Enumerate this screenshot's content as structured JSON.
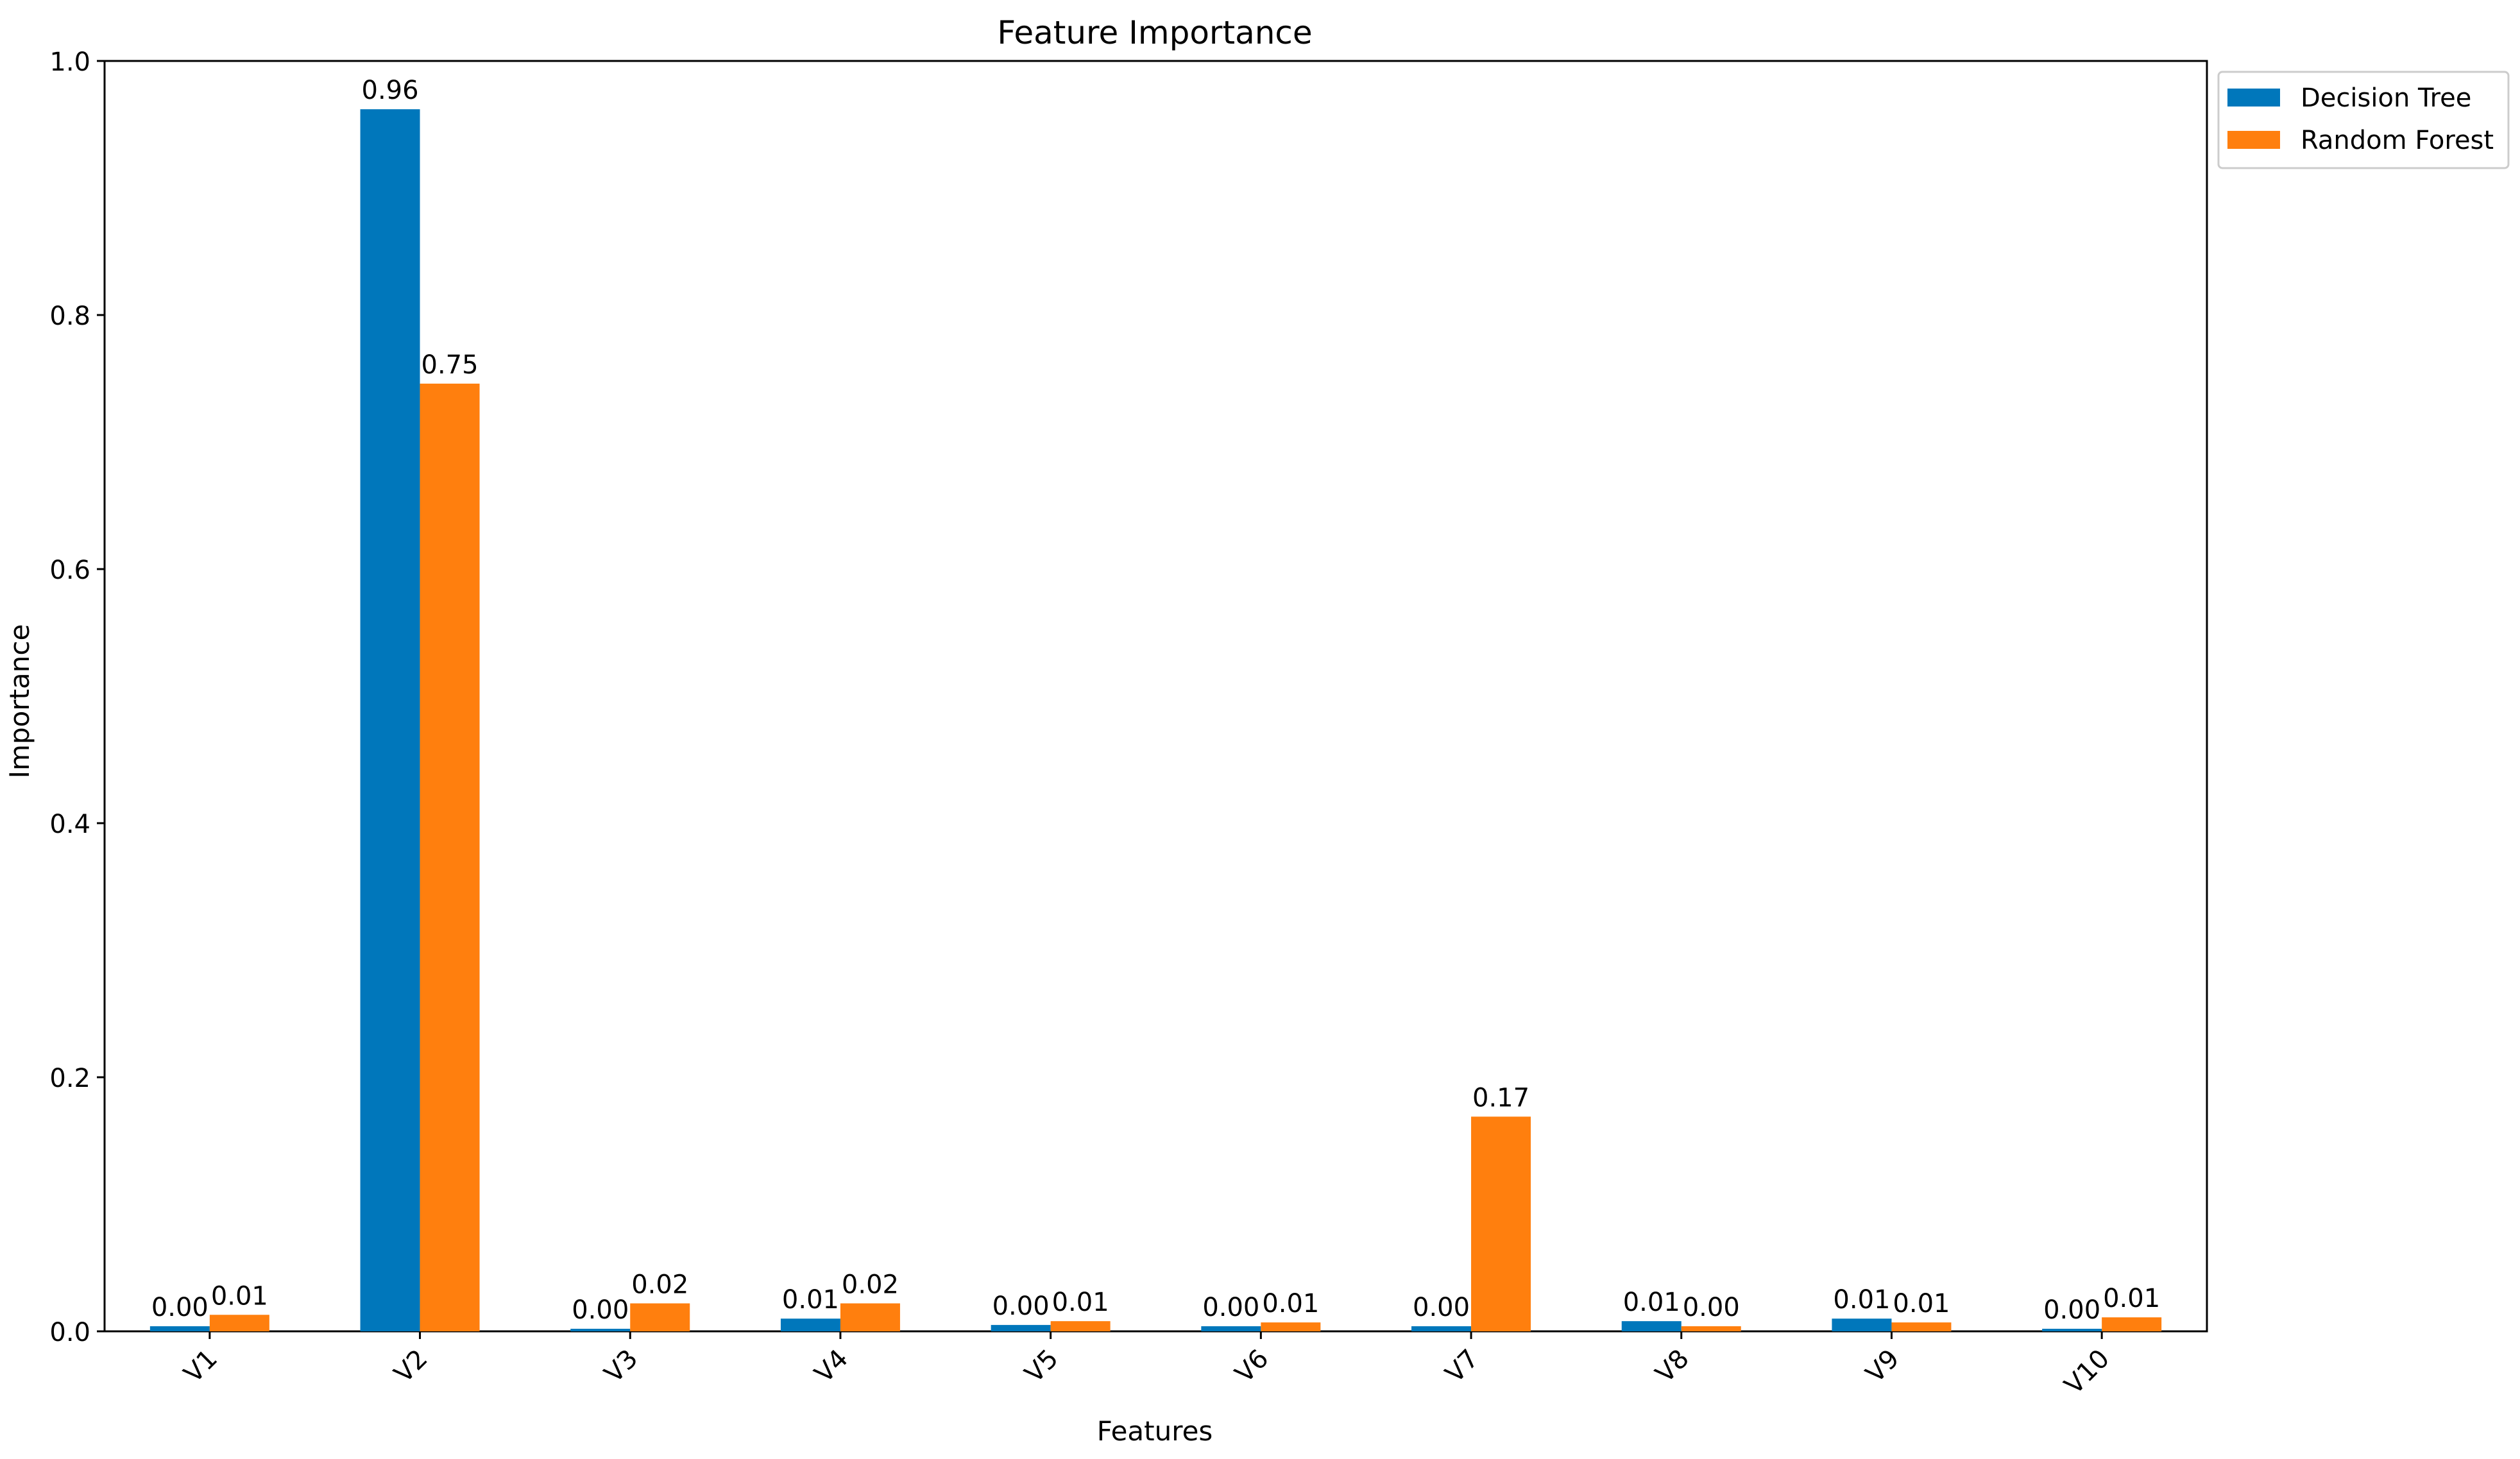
{
  "chart_data": {
    "type": "bar",
    "title": "Feature Importance",
    "xlabel": "Features",
    "ylabel": "Importance",
    "categories": [
      "V1",
      "V2",
      "V3",
      "V4",
      "V5",
      "V6",
      "V7",
      "V8",
      "V9",
      "V10"
    ],
    "series": [
      {
        "name": "Decision Tree",
        "color": "#0077bb",
        "values": [
          0.004,
          0.962,
          0.002,
          0.01,
          0.005,
          0.004,
          0.004,
          0.008,
          0.01,
          0.002
        ],
        "labels": [
          "0.00",
          "0.96",
          "0.00",
          "0.01",
          "0.00",
          "0.00",
          "0.00",
          "0.01",
          "0.01",
          "0.00"
        ]
      },
      {
        "name": "Random Forest",
        "color": "#ff7f0e",
        "values": [
          0.013,
          0.746,
          0.022,
          0.022,
          0.008,
          0.007,
          0.169,
          0.004,
          0.007,
          0.011
        ],
        "labels": [
          "0.01",
          "0.75",
          "0.02",
          "0.02",
          "0.01",
          "0.01",
          "0.17",
          "0.00",
          "0.01",
          "0.01"
        ]
      }
    ],
    "ylim": [
      0,
      1.0
    ],
    "yticks": [
      0.0,
      0.2,
      0.4,
      0.6,
      0.8,
      1.0
    ],
    "ytick_labels": [
      "0.0",
      "0.2",
      "0.4",
      "0.6",
      "0.8",
      "1.0"
    ],
    "xtick_rotation_deg": 45,
    "grid": false,
    "legend_position": "outside-top-right"
  }
}
